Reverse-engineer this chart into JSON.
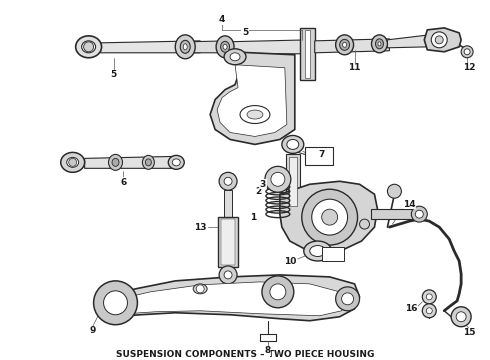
{
  "title": "SUSPENSION COMPONENTS – TWO PIECE HOUSING",
  "title_fontsize": 6.5,
  "title_fontweight": "bold",
  "bg_color": "#ffffff",
  "line_color": "#2a2a2a",
  "label_color": "#1a1a1a",
  "label_fontsize": 6.5,
  "fig_width": 4.9,
  "fig_height": 3.6,
  "dpi": 100
}
